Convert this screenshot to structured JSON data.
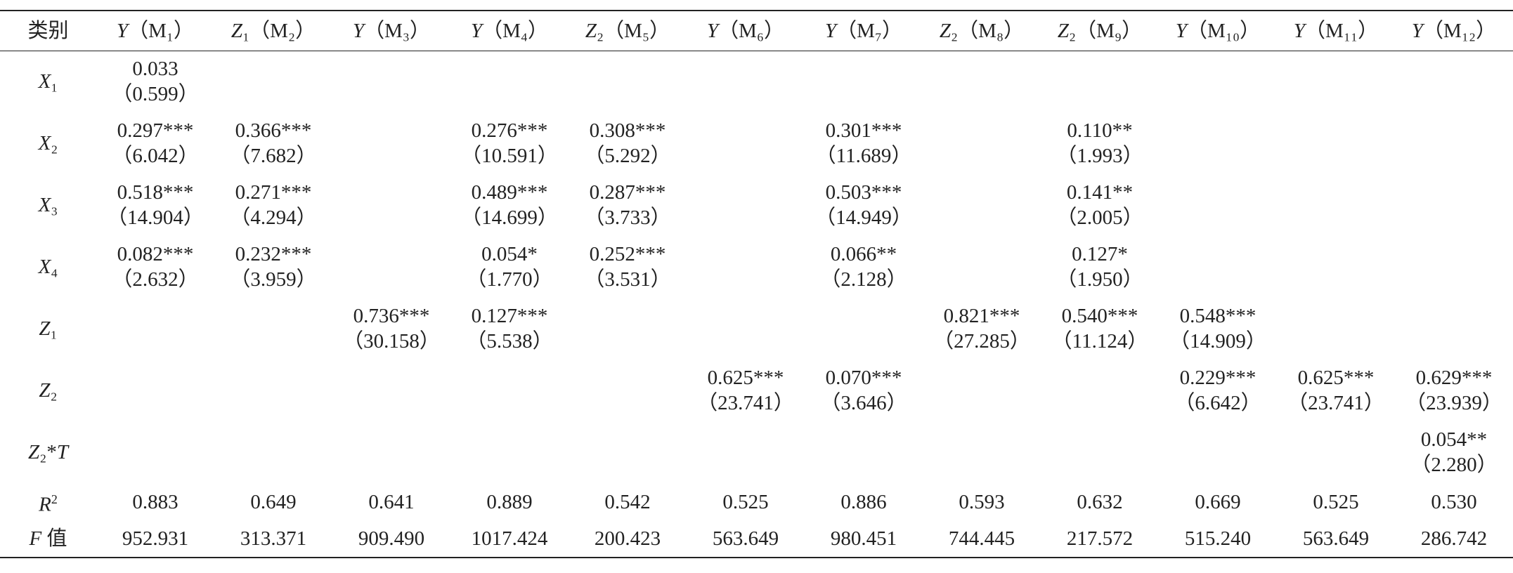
{
  "table": {
    "header": [
      "类别",
      "Y（M₁）",
      "Z₁（M₂）",
      "Y（M₃）",
      "Y（M₄）",
      "Z₂（M₅）",
      "Y（M₆）",
      "Y（M₇）",
      "Z₂（M₈）",
      "Z₂（M₉）",
      "Y（M₁₀）",
      "Y（M₁₁）",
      "Y（M₁₂）"
    ],
    "rows": [
      {
        "label": "X₁",
        "cells": [
          [
            "0.033",
            "（0.599）"
          ],
          null,
          null,
          null,
          null,
          null,
          null,
          null,
          null,
          null,
          null,
          null
        ]
      },
      {
        "label": "X₂",
        "cells": [
          [
            "0.297***",
            "（6.042）"
          ],
          [
            "0.366***",
            "（7.682）"
          ],
          null,
          [
            "0.276***",
            "（10.591）"
          ],
          [
            "0.308***",
            "（5.292）"
          ],
          null,
          [
            "0.301***",
            "（11.689）"
          ],
          null,
          [
            "0.110**",
            "（1.993）"
          ],
          null,
          null,
          null
        ]
      },
      {
        "label": "X₃",
        "cells": [
          [
            "0.518***",
            "（14.904）"
          ],
          [
            "0.271***",
            "（4.294）"
          ],
          null,
          [
            "0.489***",
            "（14.699）"
          ],
          [
            "0.287***",
            "（3.733）"
          ],
          null,
          [
            "0.503***",
            "（14.949）"
          ],
          null,
          [
            "0.141**",
            "（2.005）"
          ],
          null,
          null,
          null
        ]
      },
      {
        "label": "X₄",
        "cells": [
          [
            "0.082***",
            "（2.632）"
          ],
          [
            "0.232***",
            "（3.959）"
          ],
          null,
          [
            "0.054*",
            "（1.770）"
          ],
          [
            "0.252***",
            "（3.531）"
          ],
          null,
          [
            "0.066**",
            "（2.128）"
          ],
          null,
          [
            "0.127*",
            "（1.950）"
          ],
          null,
          null,
          null
        ]
      },
      {
        "label": "Z₁",
        "cells": [
          null,
          null,
          [
            "0.736***",
            "（30.158）"
          ],
          [
            "0.127***",
            "（5.538）"
          ],
          null,
          null,
          null,
          [
            "0.821***",
            "（27.285）"
          ],
          [
            "0.540***",
            "（11.124）"
          ],
          [
            "0.548***",
            "（14.909）"
          ],
          null,
          null
        ]
      },
      {
        "label": "Z₂",
        "cells": [
          null,
          null,
          null,
          null,
          null,
          [
            "0.625***",
            "（23.741）"
          ],
          [
            "0.070***",
            "（3.646）"
          ],
          null,
          null,
          [
            "0.229***",
            "（6.642）"
          ],
          [
            "0.625***",
            "（23.741）"
          ],
          [
            "0.629***",
            "（23.939）"
          ]
        ]
      },
      {
        "label": "Z₂*T",
        "cells": [
          null,
          null,
          null,
          null,
          null,
          null,
          null,
          null,
          null,
          null,
          null,
          [
            "0.054**",
            "（2.280）"
          ]
        ]
      }
    ],
    "summary": [
      {
        "label": "R²",
        "cells": [
          "0.883",
          "0.649",
          "0.641",
          "0.889",
          "0.542",
          "0.525",
          "0.886",
          "0.593",
          "0.632",
          "0.669",
          "0.525",
          "0.530"
        ]
      },
      {
        "label": "F 值",
        "cells": [
          "952.931",
          "313.371",
          "909.490",
          "1017.424",
          "200.423",
          "563.649",
          "980.451",
          "744.445",
          "217.572",
          "515.240",
          "563.649",
          "286.742"
        ]
      }
    ]
  }
}
